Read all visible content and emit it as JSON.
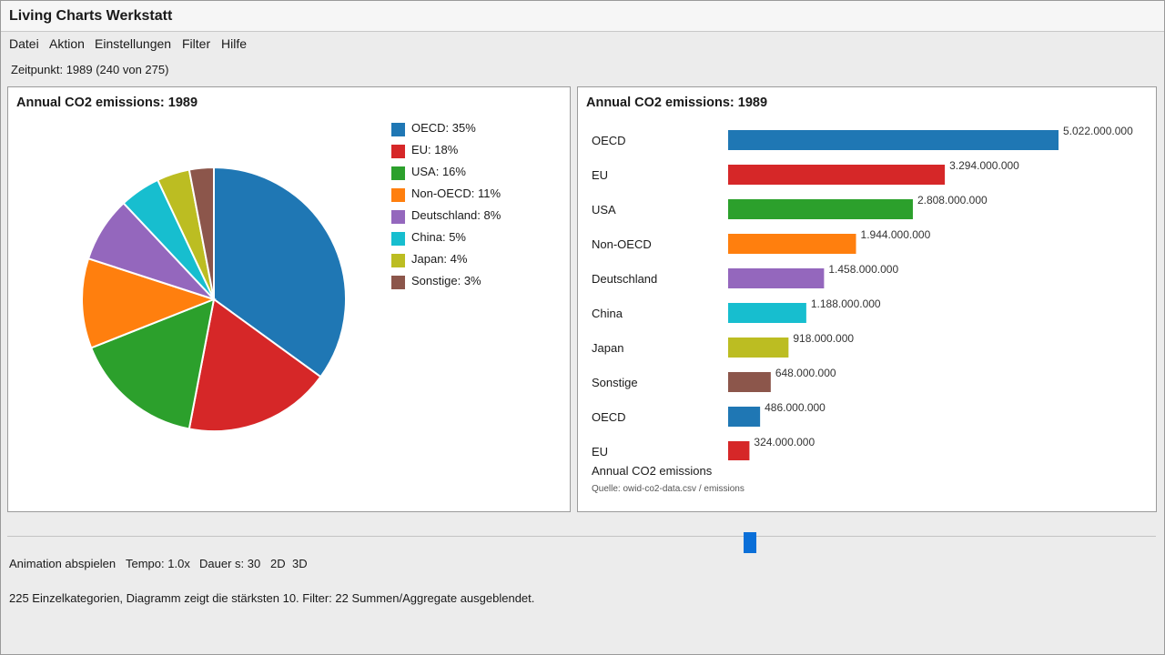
{
  "window": {
    "title": "Living Charts Werkstatt"
  },
  "menu": [
    "Datei",
    "Aktion",
    "Einstellungen",
    "Filter",
    "Hilfe"
  ],
  "timepoint": "Zeitpunkt: 1989 (240 von 275)",
  "pie_panel": {
    "title": "Annual CO2 emissions: 1989",
    "legend": [
      "OECD: 35%",
      "EU: 18%",
      "USA: 16%",
      "Non-OECD: 11%",
      "Deutschland: 8%",
      "China: 5%",
      "Japan: 4%",
      "Sonstige: 3%"
    ]
  },
  "bar_panel": {
    "title": "Annual CO2 emissions: 1989",
    "footer": "Annual CO2 emissions",
    "source": "Quelle: owid-co2-data.csv / emissions"
  },
  "colors": {
    "blue": "#1f77b4",
    "red": "#d62728",
    "green": "#2ca02c",
    "orange": "#ff7f0e",
    "purple": "#9467bd",
    "cyan": "#17becf",
    "olive": "#bcbd22",
    "brown": "#8c564b",
    "slider": "#0a6fd8"
  },
  "chart_data": [
    {
      "type": "pie",
      "title": "Annual CO2 emissions: 1989",
      "categories": [
        "OECD",
        "EU",
        "USA",
        "Non-OECD",
        "Deutschland",
        "China",
        "Japan",
        "Sonstige"
      ],
      "values": [
        35,
        18,
        16,
        11,
        8,
        5,
        4,
        3
      ],
      "legend_labels": [
        "OECD: 35%",
        "EU: 18%",
        "USA: 16%",
        "Non-OECD: 11%",
        "Deutschland: 8%",
        "China: 5%",
        "Japan: 4%",
        "Sonstige: 3%"
      ],
      "colors": [
        "#1f77b4",
        "#d62728",
        "#2ca02c",
        "#ff7f0e",
        "#9467bd",
        "#17becf",
        "#bcbd22",
        "#8c564b"
      ],
      "legend_position": "top-right"
    },
    {
      "type": "bar",
      "orientation": "horizontal",
      "title": "Annual CO2 emissions: 1989",
      "categories": [
        "OECD",
        "EU",
        "USA",
        "Non-OECD",
        "Deutschland",
        "China",
        "Japan",
        "Sonstige",
        "OECD",
        "EU"
      ],
      "values": [
        5022000000,
        3294000000,
        2808000000,
        1944000000,
        1458000000,
        1188000000,
        918000000,
        648000000,
        486000000,
        324000000
      ],
      "value_labels": [
        "5.022.000.000",
        "3.294.000.000",
        "2.808.000.000",
        "1.944.000.000",
        "1.458.000.000",
        "1.188.000.000",
        "918.000.000",
        "648.000.000",
        "486.000.000",
        "324.000.000"
      ],
      "colors": [
        "#1f77b4",
        "#d62728",
        "#2ca02c",
        "#ff7f0e",
        "#9467bd",
        "#17becf",
        "#bcbd22",
        "#8c564b",
        "#1f77b4",
        "#d62728"
      ],
      "xlabel": "Annual CO2 emissions",
      "grid": false
    }
  ],
  "slider": {
    "value": 240,
    "max": 275
  },
  "controls": {
    "play": "Animation abspielen",
    "tempo": "Tempo: 1.0x",
    "duration": "Dauer s: 30",
    "mode_2d": "2D",
    "mode_3d": "3D"
  },
  "status": "225 Einzelkategorien, Diagramm zeigt die stärksten 10. Filter: 22 Summen/Aggregate ausgeblendet."
}
